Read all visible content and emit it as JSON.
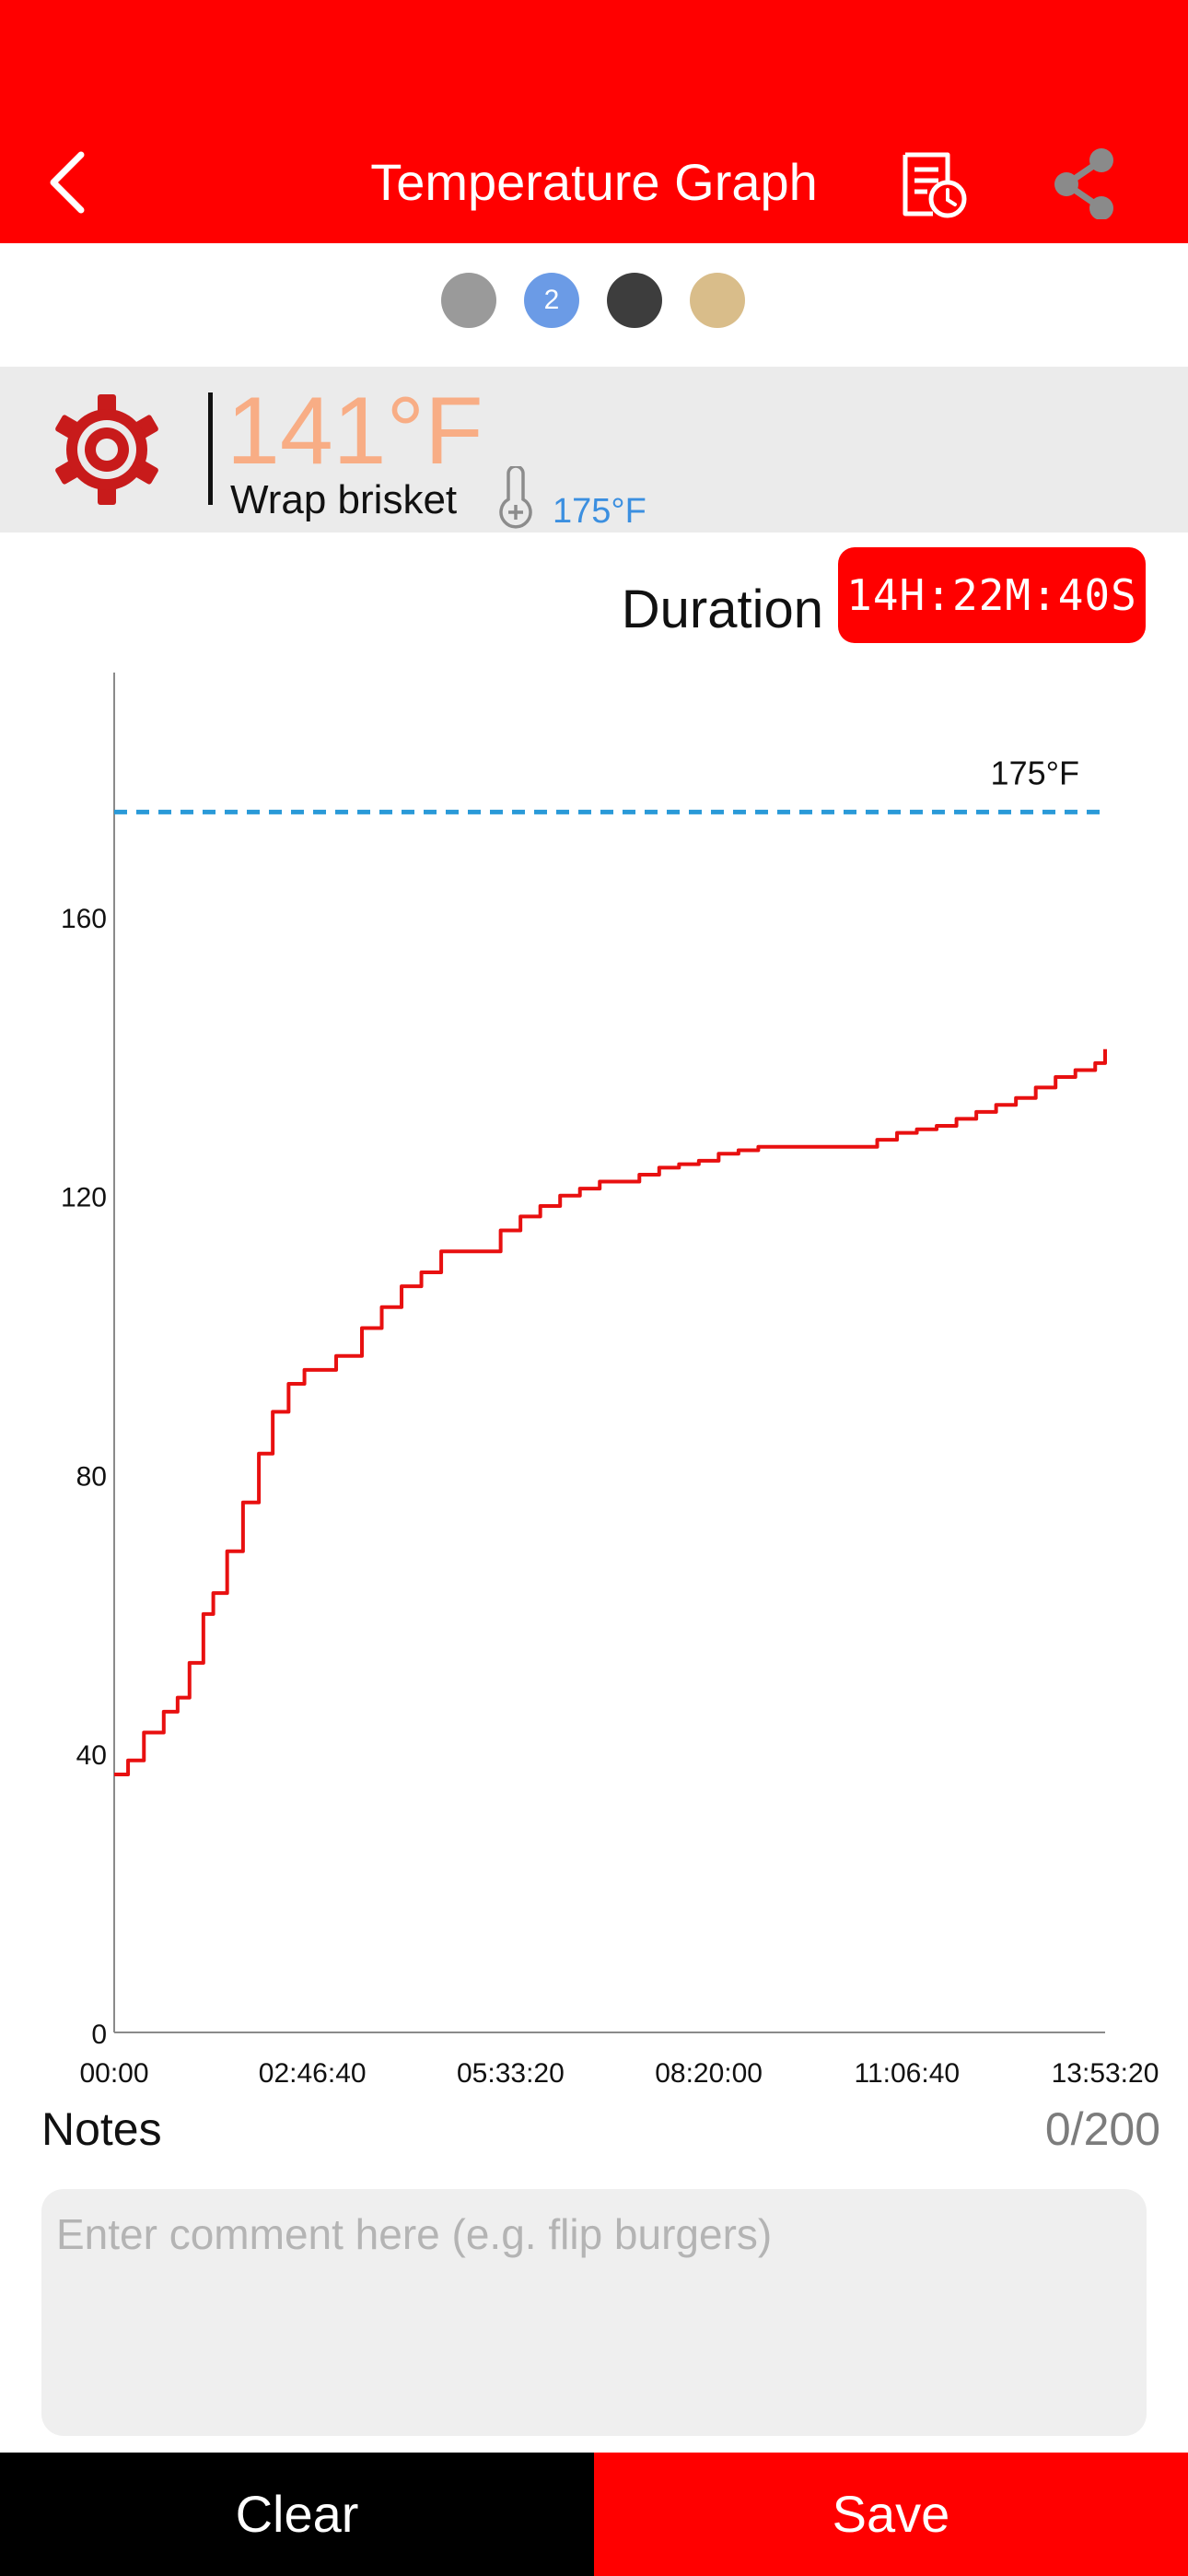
{
  "header": {
    "title": "Temperature Graph",
    "back_icon": "chevron-left-icon",
    "history_icon": "document-clock-icon",
    "share_icon": "share-icon",
    "background": "#ff0000"
  },
  "probes": [
    {
      "label": "",
      "color": "#9a9a9a",
      "selected": false
    },
    {
      "label": "2",
      "color": "#6b9be6",
      "selected": true
    },
    {
      "label": "",
      "color": "#3d3d3d",
      "selected": false
    },
    {
      "label": "",
      "color": "#d9bd8a",
      "selected": false
    }
  ],
  "probe_panel": {
    "icon": "gear-icon",
    "current_temp": "141°F",
    "current_temp_color": "#f8ad85",
    "name": "Wrap brisket",
    "target_icon": "thermometer-plus-icon",
    "target_temp": "175°F",
    "target_color": "#3b8fe0"
  },
  "duration": {
    "label": "Duration",
    "value": "14H:22M:40S"
  },
  "chart_data": {
    "type": "line",
    "title": "",
    "xlabel": "",
    "ylabel": "",
    "x_ticks": [
      "00:00",
      "02:46:40",
      "05:33:20",
      "08:20:00",
      "11:06:40",
      "13:53:20"
    ],
    "x_tick_seconds": [
      0,
      10000,
      20000,
      30000,
      40000,
      50000
    ],
    "y_ticks": [
      0,
      40,
      80,
      120,
      160
    ],
    "xlim": [
      0,
      50000
    ],
    "ylim": [
      0,
      195
    ],
    "grid": false,
    "reference_line": {
      "value": 175,
      "label": "175°F",
      "color": "#2a9ad8",
      "style": "dashed"
    },
    "series": [
      {
        "color": "#e81010",
        "x": [
          0,
          700,
          1500,
          2500,
          3200,
          3800,
          4500,
          5000,
          5700,
          6500,
          7300,
          8000,
          8800,
          9600,
          10500,
          11200,
          12500,
          13500,
          14500,
          15500,
          16500,
          17500,
          18500,
          19500,
          20500,
          21500,
          22500,
          23500,
          24500,
          25500,
          26500,
          27500,
          28500,
          29500,
          30500,
          31500,
          32500,
          33500,
          34500,
          35500,
          36500,
          37500,
          38500,
          39500,
          40500,
          41500,
          42500,
          43500,
          44500,
          45500,
          46500,
          47500,
          48500,
          49500,
          50000
        ],
        "y": [
          37,
          39,
          43,
          46,
          48,
          53,
          60,
          63,
          69,
          76,
          83,
          89,
          93,
          95,
          95,
          97,
          101,
          104,
          107,
          109,
          112,
          112,
          112,
          115,
          117,
          118.5,
          120,
          121,
          122,
          122,
          123,
          124,
          124.5,
          125,
          126,
          126.5,
          127,
          127,
          127,
          127,
          127,
          127,
          128,
          129,
          129.5,
          130,
          131,
          132,
          133,
          134,
          135.5,
          137,
          138,
          139,
          141
        ]
      }
    ]
  },
  "notes": {
    "label": "Notes",
    "count": "0/200",
    "placeholder": "Enter comment here (e.g. flip burgers)",
    "value": ""
  },
  "actions": {
    "clear": "Clear",
    "save": "Save"
  }
}
